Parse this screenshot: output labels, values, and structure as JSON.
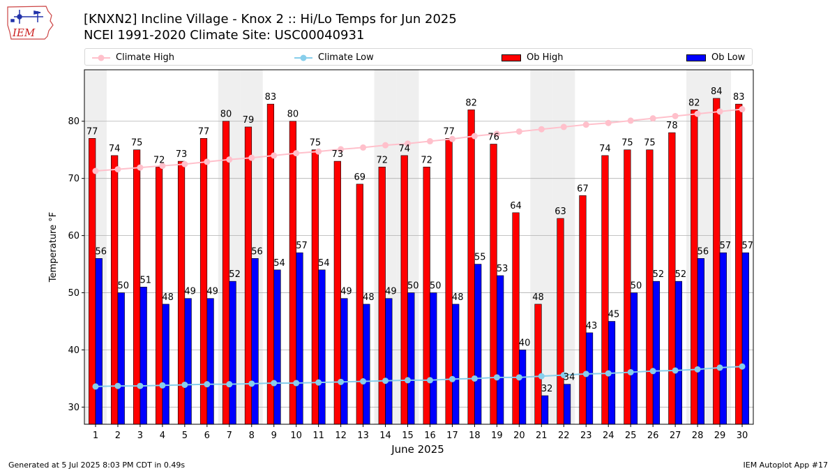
{
  "header": {
    "title_line1": "[KNXN2] Incline Village - Knox 2 :: Hi/Lo Temps for Jun 2025",
    "title_line2": "NCEI 1991-2020 Climate Site: USC00040931",
    "logo_text": "IEM"
  },
  "footer": {
    "generated": "Generated at 5 Jul 2025 8:03 PM CDT in 0.49s",
    "app": "IEM Autoplot App #17"
  },
  "colors": {
    "ob_high": "#ff0000",
    "ob_low": "#0000ff",
    "climate_high": "#ffc0cb",
    "climate_low": "#87ceeb",
    "weekend_shade": "#efefef"
  },
  "chart_data": {
    "type": "bar",
    "xlabel": "June 2025",
    "ylabel": "Temperature °F",
    "ylim": [
      27,
      89
    ],
    "yticks": [
      30,
      40,
      50,
      60,
      70,
      80
    ],
    "grid": "horizontal",
    "legend_placement": "top",
    "categories": [
      1,
      2,
      3,
      4,
      5,
      6,
      7,
      8,
      9,
      10,
      11,
      12,
      13,
      14,
      15,
      16,
      17,
      18,
      19,
      20,
      21,
      22,
      23,
      24,
      25,
      26,
      27,
      28,
      29,
      30
    ],
    "shaded_days": [
      1,
      7,
      8,
      14,
      15,
      21,
      22,
      28,
      29
    ],
    "series": [
      {
        "name": "Ob High",
        "type": "bar",
        "values": [
          77,
          74,
          75,
          72,
          73,
          77,
          80,
          79,
          83,
          80,
          75,
          73,
          69,
          72,
          74,
          72,
          77,
          82,
          76,
          64,
          48,
          63,
          67,
          74,
          75,
          75,
          78,
          82,
          84,
          83
        ]
      },
      {
        "name": "Ob Low",
        "type": "bar",
        "values": [
          56,
          50,
          51,
          48,
          49,
          49,
          52,
          56,
          54,
          57,
          54,
          49,
          48,
          49,
          50,
          50,
          48,
          55,
          53,
          40,
          32,
          34,
          43,
          45,
          50,
          52,
          52,
          56,
          57,
          57
        ]
      },
      {
        "name": "Climate High",
        "type": "line",
        "values": [
          71.3,
          71.6,
          71.9,
          72.2,
          72.5,
          72.9,
          73.3,
          73.6,
          74.0,
          74.4,
          74.7,
          75.1,
          75.4,
          75.8,
          76.1,
          76.5,
          76.9,
          77.4,
          77.8,
          78.2,
          78.6,
          79.0,
          79.4,
          79.7,
          80.1,
          80.5,
          80.9,
          81.3,
          81.7,
          82.1
        ]
      },
      {
        "name": "Climate Low",
        "type": "line",
        "values": [
          33.6,
          33.7,
          33.7,
          33.8,
          33.9,
          34.0,
          34.0,
          34.1,
          34.2,
          34.2,
          34.3,
          34.4,
          34.5,
          34.6,
          34.7,
          34.7,
          34.9,
          35.0,
          35.2,
          35.2,
          35.4,
          35.6,
          35.8,
          35.9,
          36.1,
          36.3,
          36.4,
          36.6,
          36.9,
          37.1
        ]
      }
    ]
  }
}
